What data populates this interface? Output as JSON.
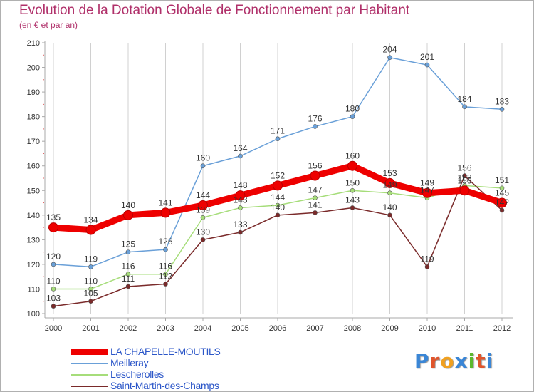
{
  "title": "Evolution de la Dotation Globale de Fonctionnement par Habitant",
  "subtitle": "(en € et par an)",
  "logo": {
    "text": "Proxiti",
    "colors": [
      "#3a86d6",
      "#e0552c",
      "#f0a020",
      "#3a86d6",
      "#5cb82e",
      "#e0552c",
      "#3a86d6"
    ]
  },
  "colors": {
    "axis": "#a8a8a8",
    "grid": "#d0d0d0",
    "tick_label": "#333333",
    "data_label": "#333333",
    "title": "#b0306a",
    "legend_text": "#2b56c8"
  },
  "chart_data": {
    "type": "line",
    "title": "Evolution de la Dotation Globale de Fonctionnement par Habitant",
    "subtitle": "(en € et par an)",
    "xlabel": "",
    "ylabel": "",
    "categories": [
      "2000",
      "2001",
      "2002",
      "2003",
      "2004",
      "2005",
      "2006",
      "2007",
      "2008",
      "2009",
      "2010",
      "2011",
      "2012"
    ],
    "ylim": [
      100,
      210
    ],
    "yticks": [
      100,
      110,
      120,
      130,
      140,
      150,
      160,
      170,
      180,
      190,
      200,
      210
    ],
    "grid": "vertical",
    "legend_position": "bottom-left",
    "series": [
      {
        "name": "LA CHAPELLE-MOUTILS",
        "color": "#ee0000",
        "emphasis": true,
        "values": [
          135,
          134,
          140,
          141,
          144,
          148,
          152,
          156,
          160,
          153,
          149,
          150,
          145
        ]
      },
      {
        "name": "Meilleray",
        "color": "#6aa0d8",
        "emphasis": false,
        "values": [
          120,
          119,
          125,
          126,
          160,
          164,
          171,
          176,
          180,
          204,
          201,
          184,
          183
        ]
      },
      {
        "name": "Lescherolles",
        "color": "#a6dd7a",
        "emphasis": false,
        "values": [
          110,
          110,
          116,
          116,
          139,
          143,
          144,
          147,
          150,
          149,
          147,
          152,
          151
        ]
      },
      {
        "name": "Saint-Martin-des-Champs",
        "color": "#7a2a2a",
        "emphasis": false,
        "values": [
          103,
          105,
          111,
          112,
          130,
          133,
          140,
          141,
          143,
          140,
          119,
          156,
          142
        ]
      }
    ]
  }
}
